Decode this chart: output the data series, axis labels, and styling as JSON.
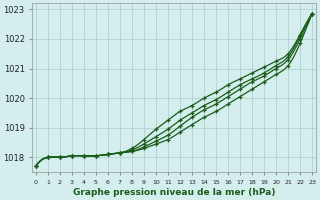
{
  "title": "Graphe pression niveau de la mer (hPa)",
  "xlabel_hours": [
    0,
    1,
    2,
    3,
    4,
    5,
    6,
    7,
    8,
    9,
    10,
    11,
    12,
    13,
    14,
    15,
    16,
    17,
    18,
    19,
    20,
    21,
    22,
    23
  ],
  "ylim": [
    1017.5,
    1023.2
  ],
  "yticks": [
    1018,
    1019,
    1020,
    1021,
    1022,
    1023
  ],
  "xlim": [
    -0.3,
    23.3
  ],
  "bg_color": "#d4eeee",
  "line_color": "#1a5c1a",
  "grid_color": "#a8cece",
  "line1": [
    1017.7,
    1018.0,
    1018.0,
    1018.05,
    1018.05,
    1018.05,
    1018.1,
    1018.15,
    1018.2,
    1018.3,
    1018.45,
    1018.6,
    1018.85,
    1019.1,
    1019.35,
    1019.55,
    1019.8,
    1020.05,
    1020.3,
    1020.55,
    1020.8,
    1021.1,
    1021.85,
    1022.85
  ],
  "line2": [
    1017.7,
    1018.0,
    1018.0,
    1018.05,
    1018.05,
    1018.05,
    1018.1,
    1018.15,
    1018.2,
    1018.35,
    1018.55,
    1018.75,
    1019.05,
    1019.35,
    1019.6,
    1019.8,
    1020.05,
    1020.3,
    1020.55,
    1020.75,
    1021.0,
    1021.3,
    1022.0,
    1022.85
  ],
  "line3": [
    1017.7,
    1018.0,
    1018.0,
    1018.05,
    1018.05,
    1018.05,
    1018.1,
    1018.15,
    1018.25,
    1018.45,
    1018.7,
    1018.95,
    1019.25,
    1019.5,
    1019.75,
    1019.95,
    1020.2,
    1020.45,
    1020.65,
    1020.85,
    1021.1,
    1021.4,
    1022.1,
    1022.85
  ],
  "line4": [
    1017.7,
    1018.0,
    1018.0,
    1018.05,
    1018.05,
    1018.05,
    1018.1,
    1018.15,
    1018.3,
    1018.6,
    1018.95,
    1019.25,
    1019.55,
    1019.75,
    1020.0,
    1020.2,
    1020.45,
    1020.65,
    1020.85,
    1021.05,
    1021.25,
    1021.5,
    1022.15,
    1022.85
  ]
}
